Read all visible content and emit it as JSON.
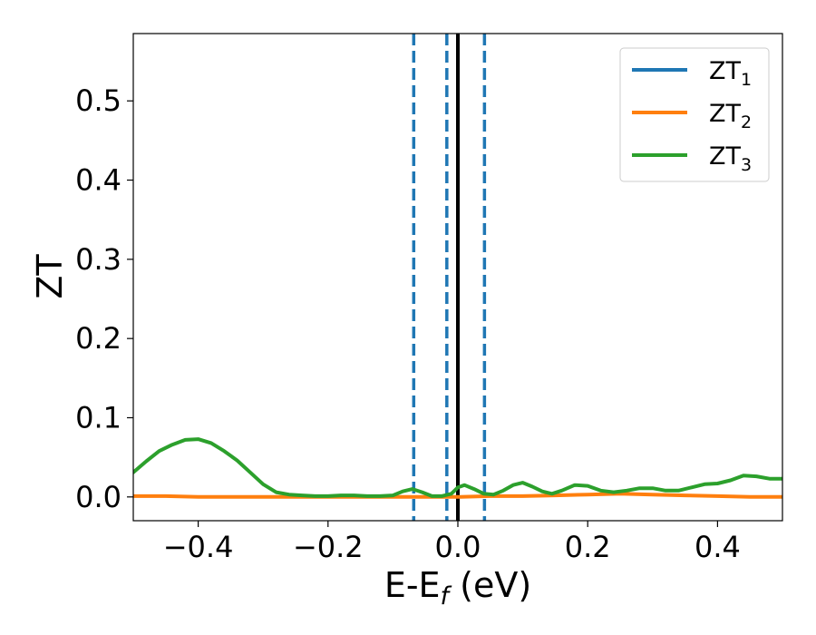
{
  "chart_data": {
    "type": "line",
    "xlabel": {
      "main": "E-E",
      "sub": "f",
      "unit": " (eV)"
    },
    "ylabel": "ZT",
    "xlim": [
      -0.5,
      0.5
    ],
    "ylim": [
      -0.03,
      0.585
    ],
    "x_ticks": [
      -0.4,
      -0.2,
      0.0,
      0.2,
      0.4
    ],
    "x_tick_labels": [
      "−0.4",
      "−0.2",
      "0.0",
      "0.2",
      "0.4"
    ],
    "y_ticks": [
      0.0,
      0.1,
      0.2,
      0.3,
      0.4,
      0.5
    ],
    "y_tick_labels": [
      "0.0",
      "0.1",
      "0.2",
      "0.3",
      "0.4",
      "0.5"
    ],
    "grid": false,
    "legend_position": "top-right",
    "series": [
      {
        "name": "ZT",
        "sub": "1",
        "color": "#1f77b4",
        "x": [
          -0.5,
          0.5
        ],
        "y": [
          null,
          null
        ]
      },
      {
        "name": "ZT",
        "sub": "2",
        "color": "#ff7f0e",
        "x": [
          -0.5,
          -0.45,
          -0.4,
          -0.35,
          -0.3,
          -0.25,
          -0.2,
          -0.15,
          -0.1,
          -0.05,
          0.0,
          0.05,
          0.1,
          0.15,
          0.2,
          0.25,
          0.3,
          0.35,
          0.4,
          0.45,
          0.5
        ],
        "y": [
          0.001,
          0.001,
          0.0,
          0.0,
          0.0,
          0.0,
          0.0,
          0.0,
          0.0,
          0.0,
          0.0,
          0.001,
          0.001,
          0.002,
          0.003,
          0.004,
          0.003,
          0.002,
          0.001,
          0.0,
          0.0
        ]
      },
      {
        "name": "ZT",
        "sub": "3",
        "color": "#2ca02c",
        "x": [
          -0.5,
          -0.48,
          -0.46,
          -0.44,
          -0.42,
          -0.4,
          -0.38,
          -0.36,
          -0.34,
          -0.32,
          -0.3,
          -0.28,
          -0.26,
          -0.24,
          -0.22,
          -0.2,
          -0.18,
          -0.16,
          -0.14,
          -0.12,
          -0.1,
          -0.085,
          -0.07,
          -0.055,
          -0.04,
          -0.025,
          -0.01,
          0.0,
          0.01,
          0.025,
          0.04,
          0.055,
          0.07,
          0.085,
          0.1,
          0.115,
          0.13,
          0.145,
          0.16,
          0.18,
          0.2,
          0.22,
          0.24,
          0.26,
          0.28,
          0.3,
          0.32,
          0.34,
          0.36,
          0.38,
          0.4,
          0.42,
          0.44,
          0.46,
          0.48,
          0.5
        ],
        "y": [
          0.031,
          0.045,
          0.058,
          0.066,
          0.072,
          0.073,
          0.068,
          0.058,
          0.046,
          0.031,
          0.016,
          0.006,
          0.003,
          0.002,
          0.001,
          0.001,
          0.002,
          0.002,
          0.001,
          0.001,
          0.002,
          0.007,
          0.01,
          0.006,
          0.001,
          0.001,
          0.004,
          0.012,
          0.015,
          0.01,
          0.004,
          0.003,
          0.008,
          0.015,
          0.018,
          0.013,
          0.007,
          0.004,
          0.008,
          0.015,
          0.014,
          0.008,
          0.006,
          0.008,
          0.011,
          0.011,
          0.008,
          0.008,
          0.012,
          0.016,
          0.017,
          0.021,
          0.027,
          0.026,
          0.023,
          0.023
        ]
      }
    ],
    "reference_lines": [
      {
        "x": 0.0,
        "style": "solid",
        "color": "#000000"
      },
      {
        "x": -0.068,
        "style": "dashed",
        "color": "#1f77b4"
      },
      {
        "x": -0.017,
        "style": "dashed",
        "color": "#1f77b4"
      },
      {
        "x": 0.041,
        "style": "dashed",
        "color": "#1f77b4"
      }
    ]
  }
}
